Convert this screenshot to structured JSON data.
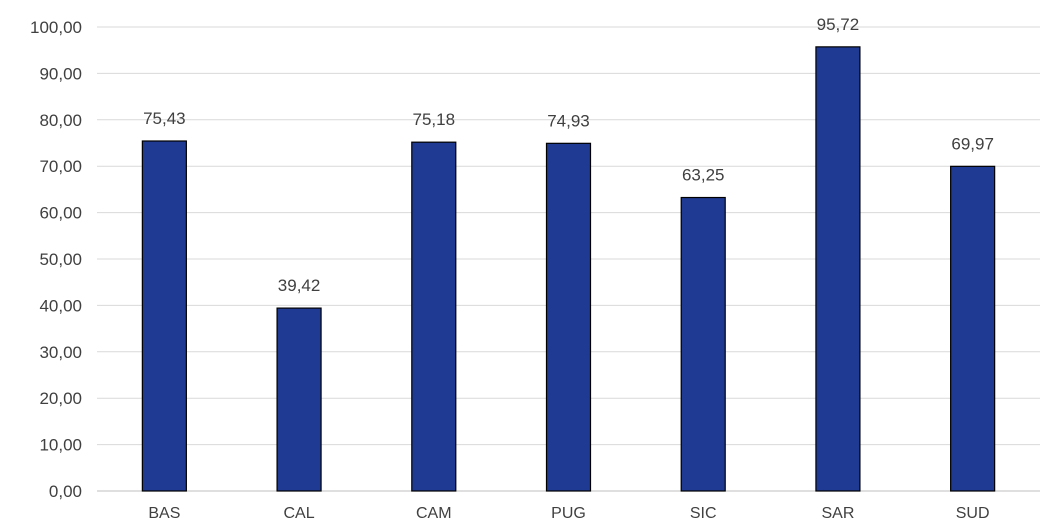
{
  "chart_data": {
    "type": "bar",
    "title": "",
    "xlabel": "",
    "ylabel": "",
    "categories": [
      "BAS",
      "CAL",
      "CAM",
      "PUG",
      "SIC",
      "SAR",
      "SUD"
    ],
    "values": [
      75.43,
      39.42,
      75.18,
      74.93,
      63.25,
      95.72,
      69.97
    ],
    "data_labels": [
      "75,43",
      "39,42",
      "75,18",
      "74,93",
      "63,25",
      "95,72",
      "69,97"
    ],
    "ylim": [
      0,
      100
    ],
    "yticks": [
      0,
      10,
      20,
      30,
      40,
      50,
      60,
      70,
      80,
      90,
      100
    ],
    "ytick_labels": [
      "0,00",
      "10,00",
      "20,00",
      "30,00",
      "40,00",
      "50,00",
      "60,00",
      "70,00",
      "80,00",
      "90,00",
      "100,00"
    ],
    "grid": true,
    "legend": "none",
    "colors": {
      "bar_fill": "#1f3a93",
      "bar_stroke": "#000000",
      "grid": "#d9d9d9",
      "axis": "#bfbfbf",
      "text": "#404040"
    }
  }
}
